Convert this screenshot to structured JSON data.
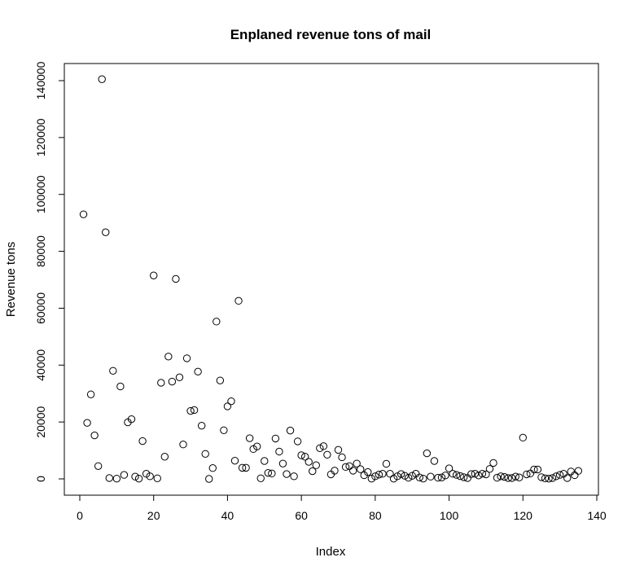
{
  "chart_data": {
    "type": "scatter",
    "title": "Enplaned revenue tons of mail",
    "xlabel": "Index",
    "ylabel": "Revenue tons",
    "xlim": [
      0,
      140
    ],
    "ylim": [
      0,
      140000
    ],
    "x_ticks": [
      0,
      20,
      40,
      60,
      80,
      100,
      120,
      140
    ],
    "y_ticks": [
      0,
      20000,
      40000,
      60000,
      80000,
      100000,
      120000,
      140000
    ],
    "x_tick_labels": [
      "0",
      "20",
      "40",
      "60",
      "80",
      "100",
      "120",
      "140"
    ],
    "y_tick_labels": [
      "0",
      "20000",
      "40000",
      "60000",
      "80000",
      "100000",
      "120000",
      "140000"
    ],
    "marker": "open-circle",
    "color": "#000000",
    "grid": false,
    "series": [
      {
        "x": [
          1,
          2,
          3,
          4,
          5,
          6,
          7,
          8,
          9,
          10,
          11,
          12,
          13,
          14,
          15,
          16,
          17,
          18,
          19,
          20,
          21,
          22,
          23,
          24,
          25,
          26,
          27,
          28,
          29,
          30,
          31,
          32,
          33,
          34,
          35,
          36,
          37,
          38,
          39,
          40,
          41,
          42,
          43,
          44,
          45,
          46,
          47,
          48,
          49,
          50,
          51,
          52,
          53,
          54,
          55,
          56,
          57,
          58,
          59,
          60,
          61,
          62,
          63,
          64,
          65,
          66,
          67,
          68,
          69,
          70,
          71,
          72,
          73,
          74,
          75,
          76,
          77,
          78,
          79,
          80,
          81,
          82,
          83,
          84,
          85,
          86,
          87,
          88,
          89,
          90,
          91,
          92,
          93,
          94,
          95,
          96,
          97,
          98,
          99,
          100,
          101,
          102,
          103,
          104,
          105,
          106,
          107,
          108,
          109,
          110,
          111,
          112,
          113,
          114,
          115,
          116,
          117,
          118,
          119,
          120,
          121,
          122,
          123,
          124,
          125,
          126,
          127,
          128,
          129,
          130,
          131,
          132,
          133,
          134,
          135
        ],
        "y": [
          93000,
          19700,
          29700,
          15300,
          4500,
          140500,
          86700,
          300,
          38000,
          100,
          32500,
          1400,
          19900,
          21000,
          800,
          100,
          13300,
          1800,
          900,
          71500,
          200,
          33800,
          7800,
          43000,
          34200,
          70300,
          35700,
          12100,
          42400,
          23900,
          24200,
          37700,
          18700,
          8800,
          0,
          3800,
          55300,
          34600,
          17100,
          25500,
          27300,
          6400,
          62600,
          3900,
          3900,
          14300,
          10500,
          11400,
          200,
          6300,
          2100,
          1900,
          14200,
          9600,
          5400,
          1700,
          17000,
          900,
          13200,
          8300,
          7800,
          6000,
          2700,
          4800,
          10800,
          11500,
          8500,
          1600,
          2900,
          10200,
          7600,
          4200,
          4500,
          2900,
          5400,
          3400,
          1300,
          2400,
          100,
          900,
          1500,
          1800,
          5300,
          1800,
          100,
          900,
          1700,
          1100,
          400,
          1100,
          1800,
          500,
          100,
          9000,
          800,
          6300,
          400,
          500,
          1200,
          3700,
          1800,
          1400,
          1000,
          600,
          300,
          1700,
          1800,
          1200,
          1800,
          1600,
          3500,
          5600,
          400,
          900,
          700,
          300,
          300,
          800,
          500,
          14500,
          1600,
          1900,
          3300,
          3300,
          600,
          200,
          100,
          300,
          900,
          1400,
          1800,
          300,
          2600,
          1300,
          2800
        ]
      }
    ]
  }
}
